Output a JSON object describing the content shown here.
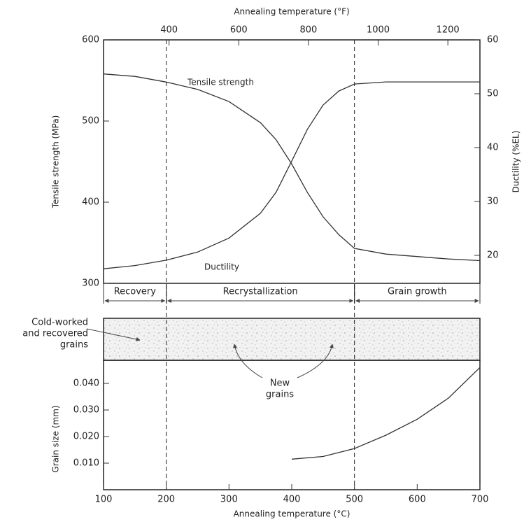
{
  "chart_data": [
    {
      "type": "line",
      "x2label": "Annealing temperature (°F)",
      "x2lim": [
        212,
        1292
      ],
      "x2ticks": [
        400,
        600,
        800,
        1000,
        1200
      ],
      "xlim": [
        100,
        700
      ],
      "ylabel": "Tensile strength (MPa)",
      "ylim": [
        300,
        600
      ],
      "yticks": [
        300,
        400,
        500,
        600
      ],
      "y2label": "Ductility (%EL)",
      "y2lim": [
        14.8,
        60
      ],
      "y2ticks": [
        20,
        30,
        40,
        50,
        60
      ],
      "x": [
        100,
        150,
        200,
        250,
        300,
        350,
        375,
        400,
        425,
        450,
        475,
        500,
        550,
        600,
        650,
        700
      ],
      "series": [
        {
          "name": "Tensile strength",
          "color": "#333333",
          "values": [
            558,
            555,
            548,
            539,
            524,
            498,
            477,
            447,
            412,
            382,
            360,
            343,
            336,
            333,
            330,
            328
          ]
        },
        {
          "name": "Ductility",
          "color": "#333333",
          "axis": "y2",
          "values": [
            17.5,
            18.1,
            19.1,
            20.6,
            23.2,
            27.8,
            31.7,
            37.5,
            43.4,
            47.9,
            50.5,
            51.8,
            52.2,
            52.2,
            52.2,
            52.2
          ]
        }
      ],
      "regions": [
        {
          "label": "Recovery",
          "start": 100,
          "end": 200
        },
        {
          "label": "Recrystallization",
          "start": 200,
          "end": 500
        },
        {
          "label": "Grain growth",
          "start": 500,
          "end": 700
        }
      ],
      "micrograph_labels": {
        "old": [
          "Cold-worked",
          "and recovered",
          "grains"
        ],
        "new": [
          "New",
          "grains"
        ]
      }
    },
    {
      "type": "line",
      "xlabel": "Annealing temperature (°C)",
      "xlim": [
        100,
        700
      ],
      "xticks": [
        100,
        200,
        300,
        400,
        500,
        600,
        700
      ],
      "ylabel": "Grain size (mm)",
      "ylim": [
        0,
        0.0487
      ],
      "yticks": [
        {
          "value": 0.01,
          "label": "0.010"
        },
        {
          "value": 0.02,
          "label": "0.020"
        },
        {
          "value": 0.03,
          "label": "0.030"
        },
        {
          "value": 0.04,
          "label": "0.040"
        }
      ],
      "x": [
        400,
        450,
        500,
        550,
        600,
        650,
        700
      ],
      "values": [
        0.0115,
        0.0125,
        0.0155,
        0.0205,
        0.0265,
        0.0345,
        0.046
      ],
      "color": "#333333"
    }
  ]
}
